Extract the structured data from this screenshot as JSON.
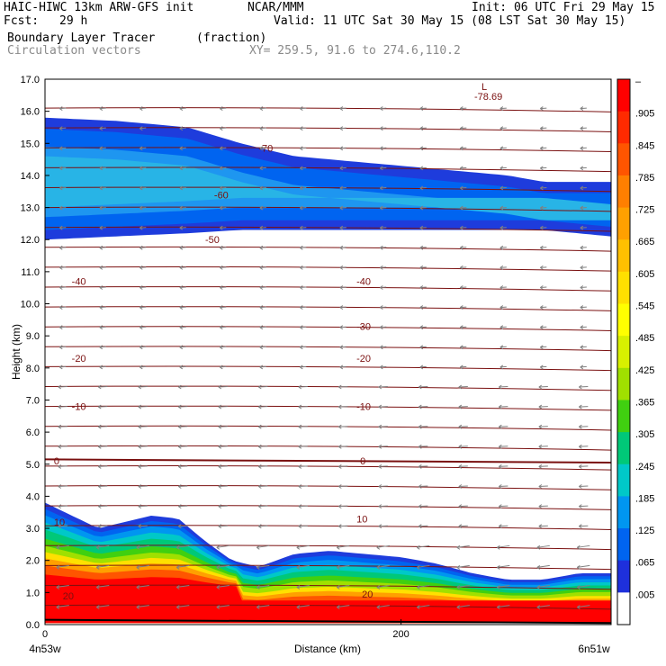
{
  "header": {
    "model": "HAIC-HIWC 13km ARW-GFS init",
    "org": "NCAR/MMM",
    "init": "Init: 06 UTC Fri 29 May 15",
    "fcst_label": "Fcst:",
    "fcst_value": "29 h",
    "valid": "Valid: 11 UTC Sat 30 May 15 (08 LST Sat 30 May 15)",
    "field": "Boundary Layer Tracer",
    "units": "(fraction)",
    "vectors": "Circulation vectors",
    "xy": "XY= 259.5, 91.6 to 274.6,110.2"
  },
  "chart_data": {
    "type": "heatmap",
    "ylabel": "Height (km)",
    "xlabel": "Distance (km)",
    "x_start_label": "4n53w",
    "x_end_label": "6n51w",
    "xlim": [
      0,
      318
    ],
    "ylim": [
      0,
      17
    ],
    "x_ticks": [
      0,
      200
    ],
    "y_ticks": [
      0.0,
      1.0,
      2.0,
      3.0,
      4.0,
      5.0,
      6.0,
      7.0,
      8.0,
      9.0,
      10.0,
      11.0,
      12.0,
      13.0,
      14.0,
      15.0,
      16.0,
      17.0
    ],
    "colorbar": {
      "labels": [
        "–",
        ".905",
        ".845",
        ".785",
        ".725",
        ".665",
        ".605",
        ".545",
        ".485",
        ".425",
        ".365",
        ".305",
        ".245",
        ".185",
        ".125",
        ".065",
        ".005"
      ],
      "colors": [
        "#ff0000",
        "#ff2a00",
        "#ff5500",
        "#ff7f00",
        "#ffa000",
        "#ffc000",
        "#ffe000",
        "#ffff00",
        "#d8f000",
        "#a0e000",
        "#40d010",
        "#00c878",
        "#00c8c8",
        "#0096f0",
        "#0064f0",
        "#1e30dc",
        "#ffffff"
      ]
    },
    "contours": [
      {
        "label": "-70",
        "y": 14.6
      },
      {
        "label": "-60",
        "y": 13.2
      },
      {
        "label": "-50",
        "y": 12.0
      },
      {
        "label": "-40",
        "y": 10.7
      },
      {
        "label": "-30",
        "y": 9.3
      },
      {
        "label": "-20",
        "y": 8.3
      },
      {
        "label": "-10",
        "y": 6.8
      },
      {
        "label": "0",
        "y": 5.1
      },
      {
        "label": "10",
        "y": 3.3
      },
      {
        "label": "20",
        "y": 0.9
      }
    ],
    "low_marker": {
      "label": "L",
      "value": "-78.69"
    },
    "upper_layer": {
      "x": [
        0,
        40,
        80,
        110,
        140,
        180,
        220,
        260,
        280,
        318
      ],
      "top": [
        15.8,
        15.7,
        15.5,
        15.0,
        14.6,
        14.4,
        14.2,
        14.0,
        13.8,
        13.8
      ],
      "bottom": [
        12.0,
        12.1,
        12.2,
        12.3,
        12.3,
        12.3,
        12.3,
        12.3,
        12.3,
        12.1
      ]
    },
    "lower_layer": {
      "x": [
        0,
        15,
        30,
        45,
        60,
        75,
        90,
        105,
        120,
        140,
        160,
        180,
        200,
        220,
        240,
        260,
        280,
        300,
        318
      ],
      "top": [
        3.8,
        3.4,
        3.0,
        3.2,
        3.4,
        3.3,
        2.6,
        2.0,
        1.8,
        2.2,
        2.3,
        2.2,
        2.1,
        1.9,
        1.6,
        1.4,
        1.4,
        1.6,
        1.6
      ]
    }
  }
}
